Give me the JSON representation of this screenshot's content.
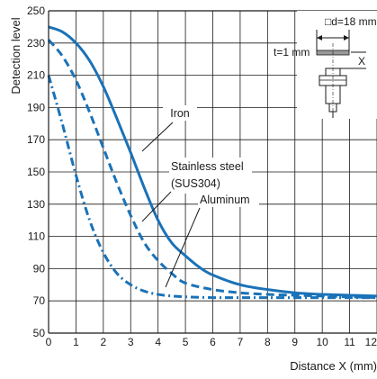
{
  "chart_data": {
    "type": "line",
    "xlabel": "Distance X (mm)",
    "ylabel": "Detection level",
    "xlim": [
      0,
      12
    ],
    "ylim": [
      50,
      250
    ],
    "x_ticks": [
      0,
      1,
      2,
      3,
      4,
      5,
      6,
      7,
      8,
      9,
      10,
      11,
      12
    ],
    "y_ticks": [
      50,
      70,
      90,
      110,
      130,
      150,
      170,
      190,
      210,
      230,
      250
    ],
    "grid": true,
    "color": "#1a72b8",
    "series": [
      {
        "name": "Iron",
        "style": "solid",
        "x": [
          0,
          0.5,
          1,
          1.5,
          2,
          2.5,
          3,
          3.5,
          4,
          4.5,
          5,
          5.5,
          6,
          7,
          8,
          9,
          10,
          11,
          12
        ],
        "y": [
          240,
          237,
          230,
          219,
          203,
          183,
          162,
          140,
          120,
          106,
          98,
          91,
          86,
          80,
          77,
          75,
          74,
          73.5,
          73
        ]
      },
      {
        "name": "Stainless steel (SUS304)",
        "style": "dashed",
        "x": [
          0,
          0.5,
          1,
          1.5,
          2,
          2.5,
          3,
          3.5,
          4,
          4.5,
          5,
          6,
          7,
          8,
          9,
          10,
          11,
          12
        ],
        "y": [
          232,
          222,
          207,
          187,
          165,
          143,
          123,
          106,
          95,
          87,
          81,
          77,
          75,
          74,
          73.5,
          73,
          72.5,
          72
        ]
      },
      {
        "name": "Aluminum",
        "style": "dashdot",
        "x": [
          0,
          0.5,
          1,
          1.5,
          2,
          2.5,
          3,
          3.5,
          4,
          4.5,
          5,
          6,
          7,
          8,
          9,
          10,
          11,
          12
        ],
        "y": [
          210,
          180,
          148,
          120,
          100,
          87,
          80,
          76,
          74,
          73,
          72.5,
          72,
          72,
          72,
          72,
          72,
          72,
          72
        ]
      }
    ],
    "annotations": [
      {
        "lines": [
          "Iron"
        ]
      },
      {
        "lines": [
          "Stainless steel",
          "(SUS304)"
        ]
      },
      {
        "lines": [
          "Aluminum"
        ]
      }
    ],
    "inset": {
      "d_label": "□d=18 mm",
      "t_label": "t=1 mm",
      "x_label": "X"
    }
  }
}
